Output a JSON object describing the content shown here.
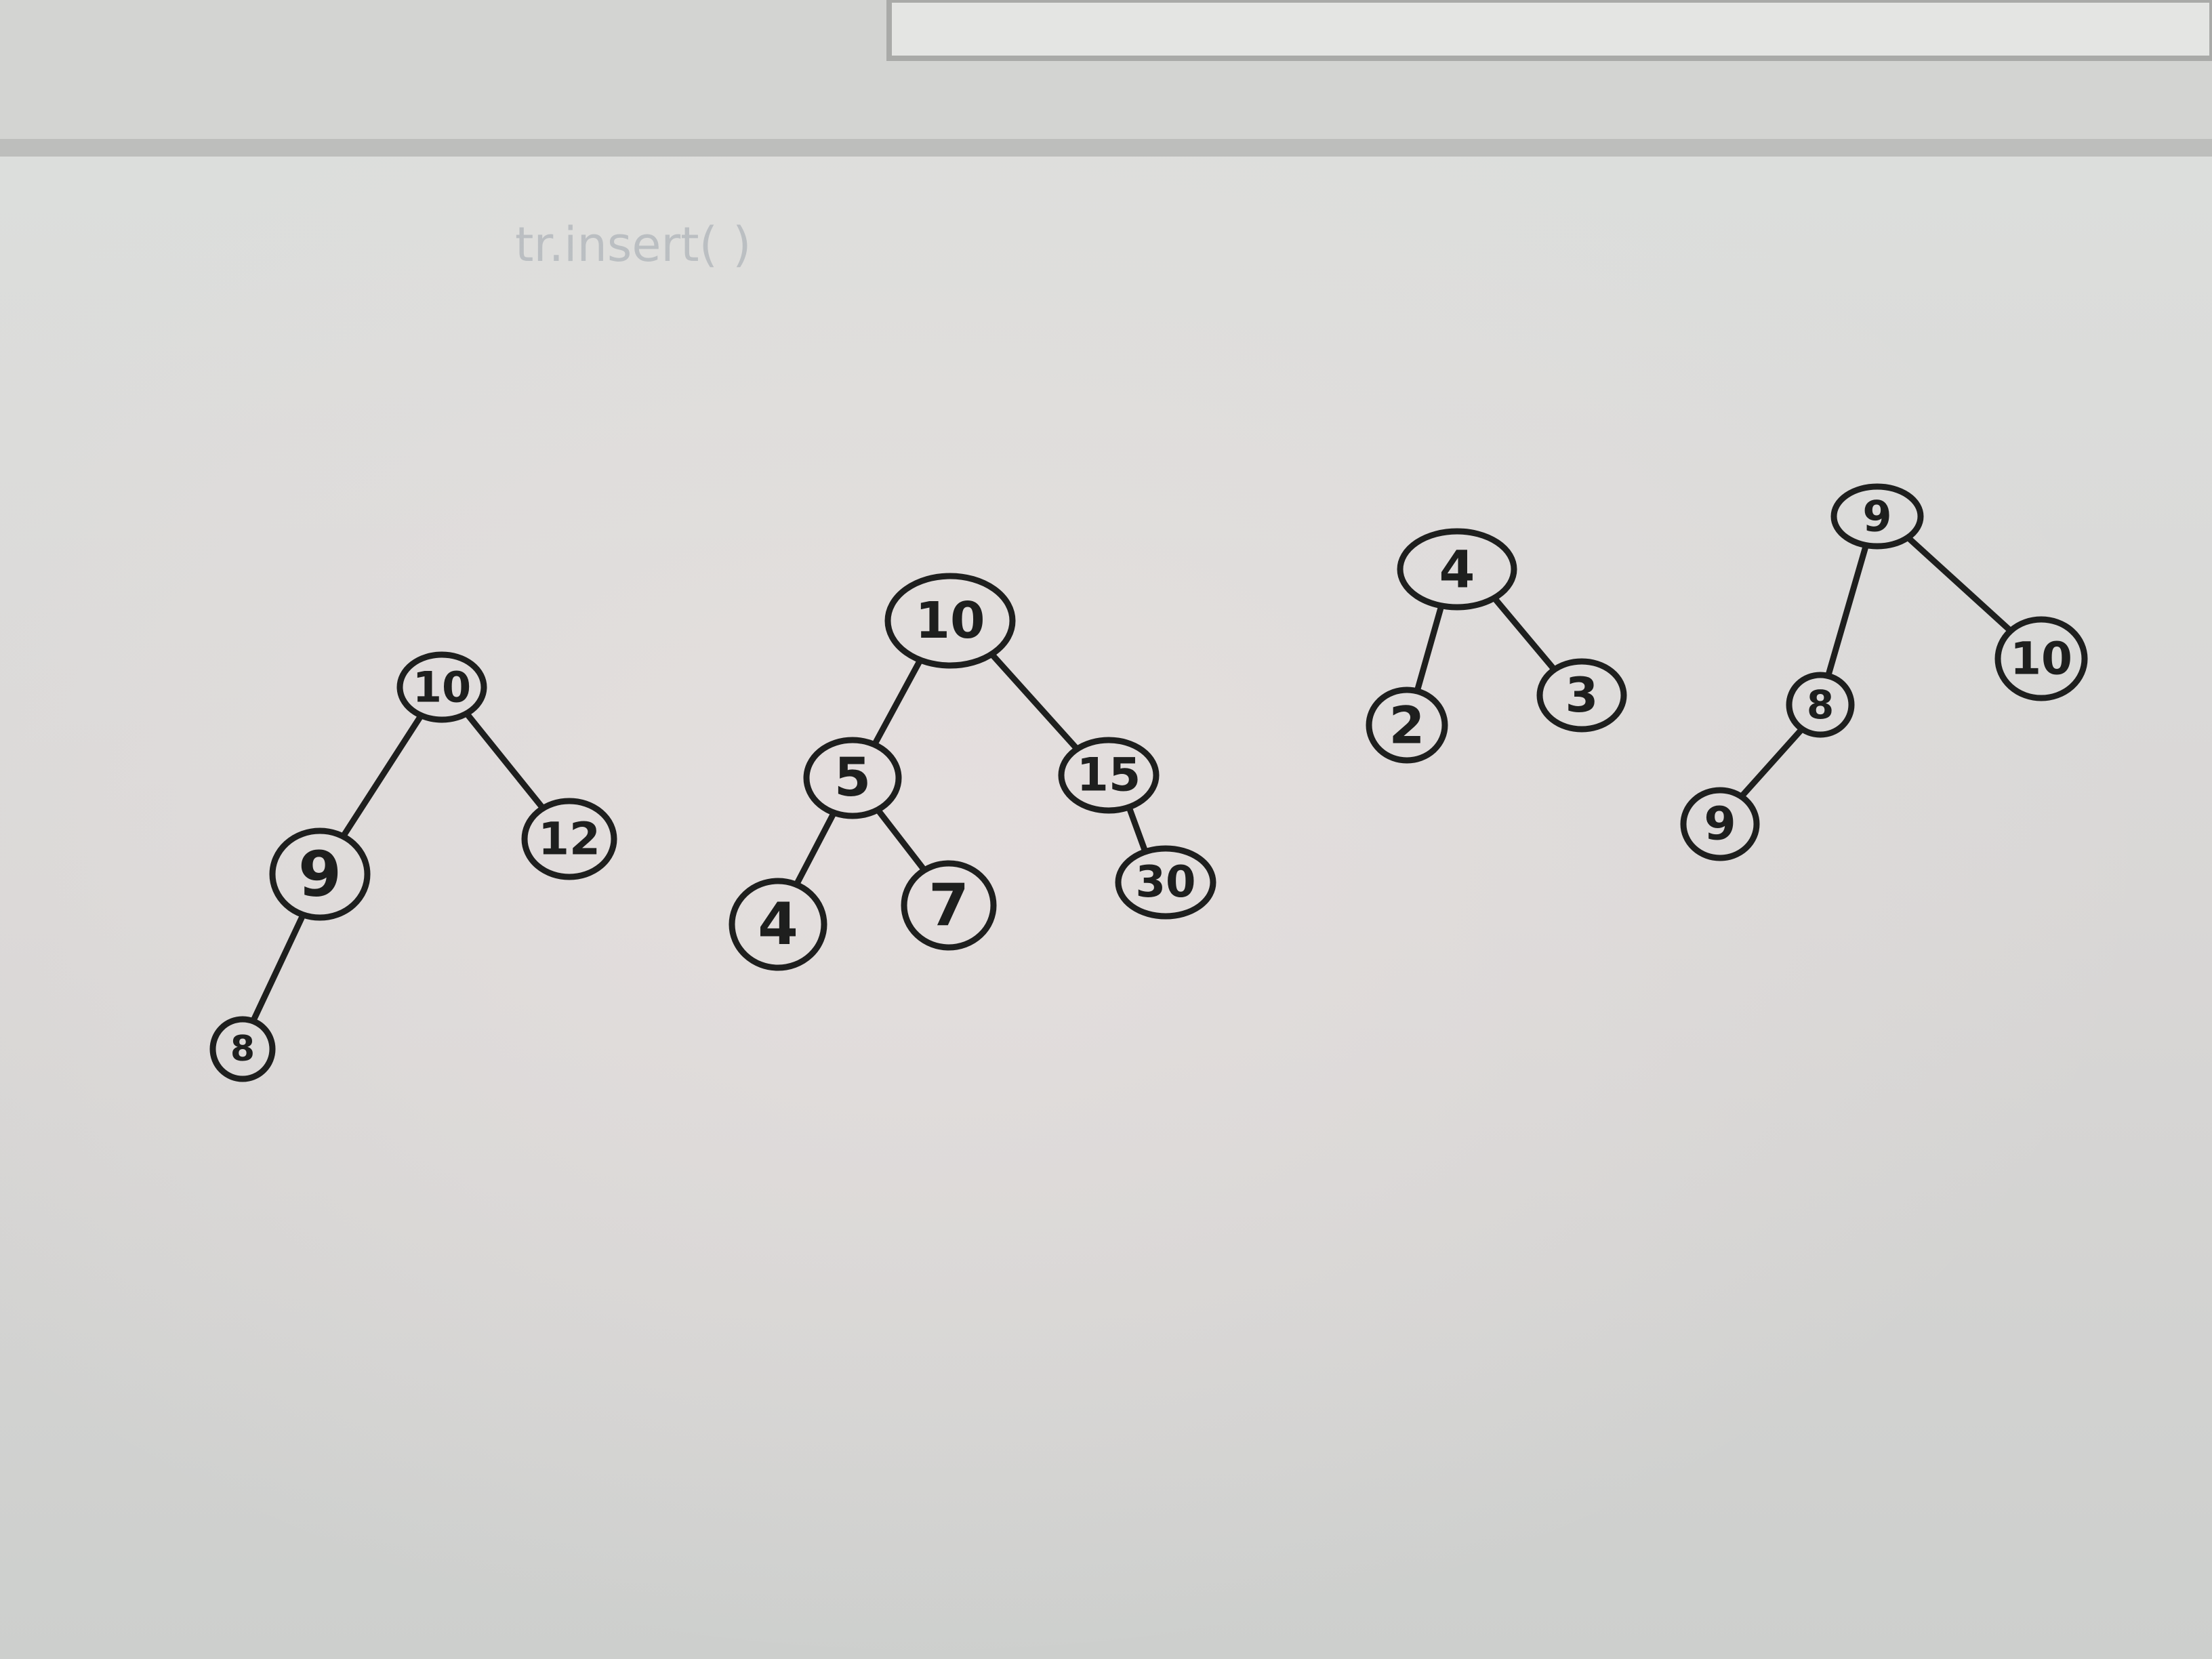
{
  "board": {
    "faint_text": "tr.insert( )",
    "colors": {
      "wall": "#cfcfcd",
      "board": "#dcdddb",
      "ink": "#1e1f1e"
    }
  },
  "trees": [
    {
      "nodes": [
        {
          "id": "a1",
          "label": "10"
        },
        {
          "id": "a2",
          "label": "9"
        },
        {
          "id": "a3",
          "label": "12"
        },
        {
          "id": "a4",
          "label": "8"
        }
      ],
      "edges": [
        [
          "a1",
          "a2"
        ],
        [
          "a1",
          "a3"
        ],
        [
          "a2",
          "a4"
        ]
      ]
    },
    {
      "nodes": [
        {
          "id": "b1",
          "label": "10"
        },
        {
          "id": "b2",
          "label": "5"
        },
        {
          "id": "b3",
          "label": "15"
        },
        {
          "id": "b4",
          "label": "4"
        },
        {
          "id": "b5",
          "label": "7"
        },
        {
          "id": "b6",
          "label": "30"
        }
      ],
      "edges": [
        [
          "b1",
          "b2"
        ],
        [
          "b1",
          "b3"
        ],
        [
          "b2",
          "b4"
        ],
        [
          "b2",
          "b5"
        ],
        [
          "b3",
          "b6"
        ]
      ]
    },
    {
      "nodes": [
        {
          "id": "c1",
          "label": "4"
        },
        {
          "id": "c2",
          "label": "2"
        },
        {
          "id": "c3",
          "label": "3"
        }
      ],
      "edges": [
        [
          "c1",
          "c2"
        ],
        [
          "c1",
          "c3"
        ]
      ]
    },
    {
      "nodes": [
        {
          "id": "d1",
          "label": "9"
        },
        {
          "id": "d2",
          "label": "8"
        },
        {
          "id": "d3",
          "label": "10"
        },
        {
          "id": "d4",
          "label": "9"
        }
      ],
      "edges": [
        [
          "d1",
          "d2"
        ],
        [
          "d1",
          "d3"
        ],
        [
          "d2",
          "d4"
        ]
      ]
    }
  ]
}
